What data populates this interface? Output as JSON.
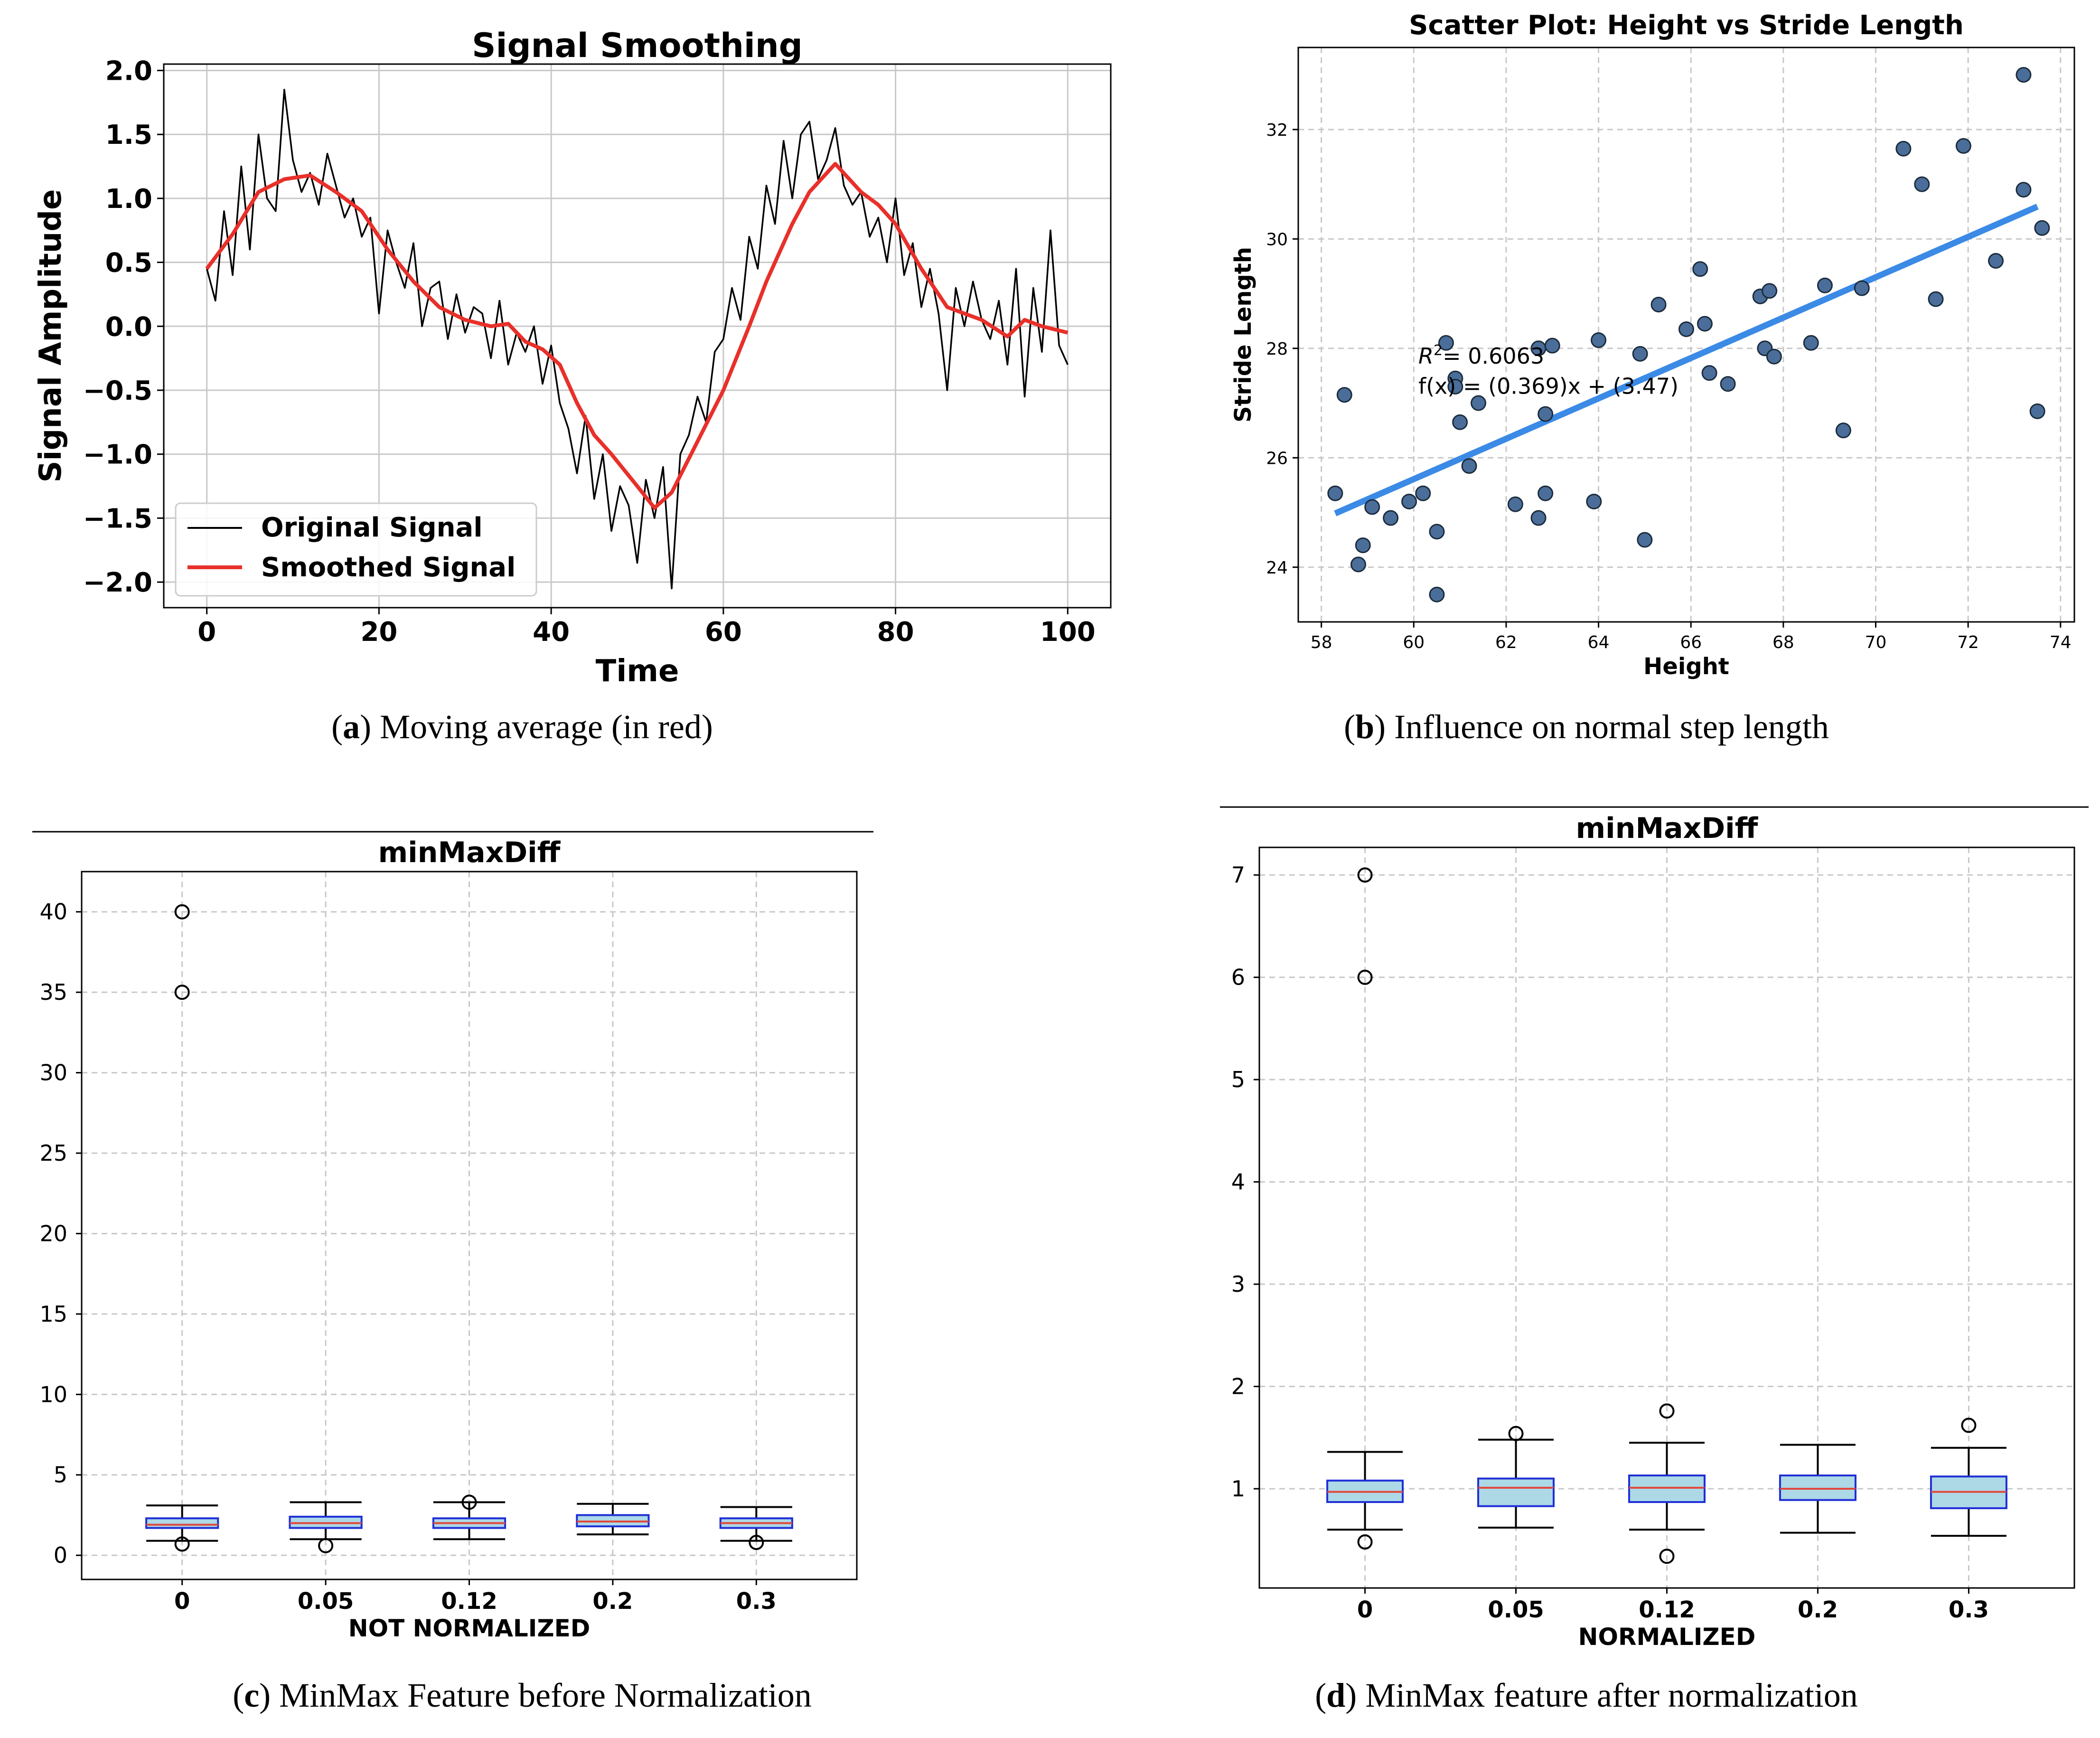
{
  "panels": {
    "a": {
      "caption_letter": "a",
      "caption_text": "Moving average (in red)",
      "caption_wrapped": true
    },
    "b": {
      "caption_letter": "b",
      "caption_text": "Influence on normal step length",
      "caption_wrapped": true
    },
    "c": {
      "caption_letter": "c",
      "caption_text": "MinMax Feature before Normalization",
      "caption_wrapped": false
    },
    "d": {
      "caption_letter": "d",
      "caption_text": "MinMax feature after normalization",
      "caption_wrapped": false
    }
  },
  "colors": {
    "original": "#000000",
    "smoothed": "#e8302a",
    "scatter_fill": "#4a6e99",
    "fit_line": "#3b8ae6",
    "box_fill": "#add8e6",
    "box_edge": "#1f2fd6",
    "median": "#e0483c",
    "grid": "#c8c8c8"
  },
  "chart_data": [
    {
      "id": "a",
      "type": "line",
      "title": "Signal Smoothing",
      "xlabel": "Time",
      "ylabel": "Signal Amplitude",
      "xlim": [
        -5,
        105
      ],
      "ylim": [
        -2.2,
        2.05
      ],
      "xticks": [
        0,
        20,
        40,
        60,
        80,
        100
      ],
      "yticks": [
        -2.0,
        -1.5,
        -1.0,
        -0.5,
        0.0,
        0.5,
        1.0,
        1.5,
        2.0
      ],
      "ytick_labels": [
        "−2.0",
        "−1.5",
        "−1.0",
        "−0.5",
        "0.0",
        "0.5",
        "1.0",
        "1.5",
        "2.0"
      ],
      "grid": true,
      "legend": "lower-left",
      "series": [
        {
          "name": "Original Signal",
          "style": "thin-black",
          "x": [
            0,
            1,
            2,
            3,
            4,
            5,
            6,
            7,
            8,
            9,
            10,
            11,
            12,
            13,
            14,
            15,
            16,
            17,
            18,
            19,
            20,
            21,
            22,
            23,
            24,
            25,
            26,
            27,
            28,
            29,
            30,
            31,
            32,
            33,
            34,
            35,
            36,
            37,
            38,
            39,
            40,
            41,
            42,
            43,
            44,
            45,
            46,
            47,
            48,
            49,
            50,
            51,
            52,
            53,
            54,
            55,
            56,
            57,
            58,
            59,
            60,
            61,
            62,
            63,
            64,
            65,
            66,
            67,
            68,
            69,
            70,
            71,
            72,
            73,
            74,
            75,
            76,
            77,
            78,
            79,
            80,
            81,
            82,
            83,
            84,
            85,
            86,
            87,
            88,
            89,
            90,
            91,
            92,
            93,
            94,
            95,
            96,
            97,
            98,
            99,
            100
          ],
          "y": [
            0.45,
            0.2,
            0.9,
            0.4,
            1.25,
            0.6,
            1.5,
            1.0,
            0.9,
            1.85,
            1.3,
            1.05,
            1.2,
            0.95,
            1.35,
            1.1,
            0.85,
            1.0,
            0.7,
            0.85,
            0.1,
            0.75,
            0.5,
            0.3,
            0.65,
            0.0,
            0.3,
            0.35,
            -0.1,
            0.25,
            -0.05,
            0.15,
            0.1,
            -0.25,
            0.2,
            -0.3,
            -0.05,
            -0.2,
            0.0,
            -0.45,
            -0.15,
            -0.6,
            -0.8,
            -1.15,
            -0.7,
            -1.35,
            -1.0,
            -1.6,
            -1.25,
            -1.4,
            -1.85,
            -1.2,
            -1.5,
            -1.1,
            -2.05,
            -1.0,
            -0.85,
            -0.55,
            -0.75,
            -0.2,
            -0.1,
            0.3,
            0.05,
            0.7,
            0.45,
            1.1,
            0.8,
            1.45,
            1.0,
            1.5,
            1.6,
            1.15,
            1.3,
            1.55,
            1.1,
            0.95,
            1.05,
            0.7,
            0.85,
            0.5,
            1.0,
            0.4,
            0.65,
            0.15,
            0.45,
            0.1,
            -0.5,
            0.3,
            0.0,
            0.35,
            0.05,
            -0.1,
            0.2,
            -0.3,
            0.45,
            -0.55,
            0.3,
            -0.2,
            0.75,
            -0.15,
            -0.3
          ]
        },
        {
          "name": "Smoothed Signal",
          "style": "thick-red",
          "x": [
            0,
            3,
            6,
            9,
            12,
            15,
            18,
            21,
            24,
            27,
            30,
            33,
            35,
            37,
            39,
            41,
            43,
            45,
            47,
            50,
            52,
            54,
            57,
            60,
            63,
            65,
            68,
            70,
            73,
            76,
            78,
            80,
            83,
            86,
            90,
            93,
            95,
            97,
            100
          ],
          "y": [
            0.45,
            0.72,
            1.05,
            1.15,
            1.18,
            1.05,
            0.9,
            0.6,
            0.35,
            0.15,
            0.05,
            0.0,
            0.02,
            -0.12,
            -0.18,
            -0.3,
            -0.6,
            -0.85,
            -1.0,
            -1.25,
            -1.42,
            -1.3,
            -0.9,
            -0.5,
            0.0,
            0.35,
            0.8,
            1.05,
            1.27,
            1.05,
            0.95,
            0.8,
            0.45,
            0.15,
            0.05,
            -0.08,
            0.05,
            0.0,
            -0.05
          ]
        }
      ]
    },
    {
      "id": "b",
      "type": "scatter",
      "title": "Scatter Plot: Height vs Stride Length",
      "xlabel": "Height",
      "ylabel": "Stride Length",
      "xlim": [
        57.5,
        74.3
      ],
      "ylim": [
        23.0,
        33.5
      ],
      "xticks": [
        58,
        60,
        62,
        64,
        66,
        68,
        70,
        72,
        74
      ],
      "yticks": [
        24,
        26,
        28,
        30,
        32
      ],
      "grid": true,
      "annotation_r2": "= 0.6063",
      "annotation_r2_prefix": "R",
      "annotation_r2_sup": "2",
      "annotation_fx": "f(x) = (0.369)x + (3.47)",
      "fit": {
        "slope": 0.369,
        "intercept": 3.47,
        "x_range": [
          58.3,
          73.5
        ]
      },
      "points": [
        [
          58.3,
          25.35
        ],
        [
          58.5,
          27.15
        ],
        [
          58.8,
          24.05
        ],
        [
          58.9,
          24.4
        ],
        [
          59.1,
          25.1
        ],
        [
          59.5,
          24.9
        ],
        [
          59.9,
          25.2
        ],
        [
          60.2,
          25.35
        ],
        [
          60.5,
          24.65
        ],
        [
          60.5,
          23.5
        ],
        [
          60.7,
          28.1
        ],
        [
          60.9,
          27.45
        ],
        [
          60.9,
          27.3
        ],
        [
          61.0,
          26.65
        ],
        [
          61.2,
          25.85
        ],
        [
          61.4,
          27.0
        ],
        [
          62.2,
          25.15
        ],
        [
          62.7,
          24.9
        ],
        [
          62.7,
          28.0
        ],
        [
          62.85,
          26.8
        ],
        [
          62.85,
          25.35
        ],
        [
          63.0,
          28.05
        ],
        [
          63.9,
          25.2
        ],
        [
          64.0,
          28.15
        ],
        [
          64.9,
          27.9
        ],
        [
          65.0,
          24.5
        ],
        [
          65.3,
          28.8
        ],
        [
          65.9,
          28.35
        ],
        [
          66.2,
          29.45
        ],
        [
          66.3,
          28.45
        ],
        [
          66.4,
          27.55
        ],
        [
          66.8,
          27.35
        ],
        [
          67.5,
          28.95
        ],
        [
          67.6,
          28.0
        ],
        [
          67.7,
          29.05
        ],
        [
          67.8,
          27.85
        ],
        [
          68.6,
          28.1
        ],
        [
          68.9,
          29.15
        ],
        [
          69.3,
          26.5
        ],
        [
          69.7,
          29.1
        ],
        [
          70.6,
          31.65
        ],
        [
          71.0,
          31.0
        ],
        [
          71.3,
          28.9
        ],
        [
          71.9,
          31.7
        ],
        [
          72.6,
          29.6
        ],
        [
          73.2,
          30.9
        ],
        [
          73.2,
          33.0
        ],
        [
          73.5,
          26.85
        ],
        [
          73.6,
          30.2
        ]
      ]
    },
    {
      "id": "c",
      "type": "box",
      "title": "minMaxDiff",
      "xlabel": "NOT NORMALIZED",
      "ylabel": "",
      "ylim": [
        -1.5,
        42.5
      ],
      "yticks": [
        0,
        5,
        10,
        15,
        20,
        25,
        30,
        35,
        40
      ],
      "categories": [
        "0",
        "0.05",
        "0.12",
        "0.2",
        "0.3"
      ],
      "grid": true,
      "boxes": [
        {
          "whisker_low": 0.9,
          "q1": 1.7,
          "median": 1.9,
          "q3": 2.3,
          "whisker_high": 3.1,
          "outliers": [
            0.7,
            35,
            40
          ]
        },
        {
          "whisker_low": 1.0,
          "q1": 1.7,
          "median": 2.0,
          "q3": 2.4,
          "whisker_high": 3.3,
          "outliers": [
            0.6
          ]
        },
        {
          "whisker_low": 1.0,
          "q1": 1.7,
          "median": 2.0,
          "q3": 2.3,
          "whisker_high": 3.3,
          "outliers": [
            3.3
          ]
        },
        {
          "whisker_low": 1.3,
          "q1": 1.8,
          "median": 2.1,
          "q3": 2.5,
          "whisker_high": 3.2,
          "outliers": []
        },
        {
          "whisker_low": 0.9,
          "q1": 1.7,
          "median": 2.0,
          "q3": 2.3,
          "whisker_high": 3.0,
          "outliers": [
            0.8
          ]
        }
      ]
    },
    {
      "id": "d",
      "type": "box",
      "title": "minMaxDiff",
      "xlabel": "NORMALIZED",
      "ylabel": "",
      "ylim": [
        0.03,
        7.27
      ],
      "yticks": [
        1,
        2,
        3,
        4,
        5,
        6,
        7
      ],
      "categories": [
        "0",
        "0.05",
        "0.12",
        "0.2",
        "0.3"
      ],
      "grid": true,
      "boxes": [
        {
          "whisker_low": 0.6,
          "q1": 0.87,
          "median": 0.97,
          "q3": 1.08,
          "whisker_high": 1.36,
          "outliers": [
            0.48,
            6.0,
            7.0
          ]
        },
        {
          "whisker_low": 0.62,
          "q1": 0.83,
          "median": 1.01,
          "q3": 1.1,
          "whisker_high": 1.48,
          "outliers": [
            1.54
          ]
        },
        {
          "whisker_low": 0.6,
          "q1": 0.87,
          "median": 1.01,
          "q3": 1.13,
          "whisker_high": 1.45,
          "outliers": [
            0.34,
            1.76
          ]
        },
        {
          "whisker_low": 0.57,
          "q1": 0.89,
          "median": 1.0,
          "q3": 1.13,
          "whisker_high": 1.43,
          "outliers": []
        },
        {
          "whisker_low": 0.54,
          "q1": 0.81,
          "median": 0.97,
          "q3": 1.12,
          "whisker_high": 1.4,
          "outliers": [
            1.62
          ]
        }
      ]
    }
  ]
}
